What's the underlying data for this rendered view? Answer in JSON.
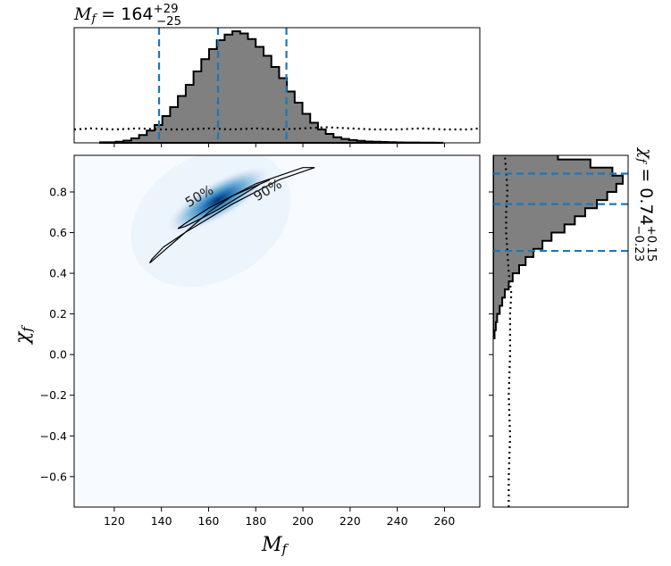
{
  "colors": {
    "hist_fill": "#808080",
    "hist_edge": "#000000",
    "quantile_line": "#1f77b4",
    "density_low": "#f7fbff",
    "density_high": "#08306b",
    "contour": "#000000"
  },
  "chart_data": {
    "type": "heatmap",
    "title_top": {
      "symbol": "M",
      "sub": "f",
      "text": " = 164",
      "sup": "+29",
      "subscript": "−25"
    },
    "title_right": {
      "symbol": "χ",
      "sub": "f",
      "text": " = 0.74",
      "sup": "+0.15",
      "subscript": "−0.23"
    },
    "xlabel": {
      "symbol": "M",
      "sub": "f"
    },
    "ylabel": {
      "symbol": "χ",
      "sub": "f"
    },
    "xlim": [
      103,
      275
    ],
    "ylim": [
      -0.75,
      0.98
    ],
    "x_ticks": [
      120,
      140,
      160,
      180,
      200,
      220,
      240,
      260
    ],
    "y_ticks": [
      -0.6,
      -0.4,
      -0.2,
      0.0,
      0.2,
      0.4,
      0.6,
      0.8
    ],
    "y_tick_labels": [
      "−0.6",
      "−0.4",
      "−0.2",
      "0.0",
      "0.2",
      "0.4",
      "0.6",
      "0.8"
    ],
    "mf_quantiles": [
      139,
      164,
      193
    ],
    "chi_quantiles": [
      0.51,
      0.74,
      0.89
    ],
    "mf_hist": {
      "bin_start": 114,
      "bin_width": 3.3,
      "density": [
        0.005,
        0.005,
        0.01,
        0.02,
        0.04,
        0.07,
        0.11,
        0.16,
        0.24,
        0.32,
        0.42,
        0.52,
        0.64,
        0.75,
        0.84,
        0.92,
        0.97,
        1.0,
        0.98,
        0.93,
        0.86,
        0.78,
        0.68,
        0.58,
        0.46,
        0.36,
        0.26,
        0.18,
        0.12,
        0.08,
        0.05,
        0.035,
        0.025,
        0.018,
        0.012,
        0.01,
        0.008,
        0.006,
        0.004,
        0.003,
        0.003,
        0.002,
        0.002,
        0.001
      ]
    },
    "mf_prior": {
      "x": [
        103,
        110,
        120,
        130,
        140,
        150,
        160,
        170,
        180,
        190,
        200,
        210,
        220,
        230,
        240,
        250,
        260,
        270,
        275
      ],
      "density": [
        0.12,
        0.13,
        0.12,
        0.13,
        0.12,
        0.12,
        0.13,
        0.12,
        0.13,
        0.12,
        0.13,
        0.14,
        0.13,
        0.12,
        0.12,
        0.13,
        0.12,
        0.12,
        0.13
      ]
    },
    "chi_hist": {
      "bin_start": 0.08,
      "bin_width": 0.04,
      "density": [
        0.01,
        0.02,
        0.03,
        0.05,
        0.07,
        0.09,
        0.12,
        0.15,
        0.2,
        0.25,
        0.31,
        0.38,
        0.45,
        0.55,
        0.63,
        0.71,
        0.8,
        0.88,
        0.95,
        1.0,
        0.92,
        0.75,
        0.5,
        0.25
      ]
    },
    "chi_prior": {
      "y": [
        -0.75,
        -0.6,
        -0.4,
        -0.2,
        0.0,
        0.2,
        0.3,
        0.4,
        0.5,
        0.6,
        0.7,
        0.8,
        0.9,
        0.98
      ],
      "density": [
        0.12,
        0.12,
        0.13,
        0.12,
        0.13,
        0.13,
        0.14,
        0.12,
        0.11,
        0.1,
        0.1,
        0.11,
        0.1,
        0.09
      ]
    },
    "density_peak": {
      "mf": 164,
      "chi": 0.76
    },
    "contour_90": [
      [
        135,
        0.45
      ],
      [
        140,
        0.5
      ],
      [
        150,
        0.6
      ],
      [
        160,
        0.7
      ],
      [
        170,
        0.78
      ],
      [
        180,
        0.84
      ],
      [
        190,
        0.88
      ],
      [
        200,
        0.92
      ],
      [
        205,
        0.92
      ],
      [
        200,
        0.9
      ],
      [
        190,
        0.86
      ],
      [
        180,
        0.8
      ],
      [
        170,
        0.74
      ],
      [
        160,
        0.67
      ],
      [
        150,
        0.6
      ],
      [
        141,
        0.53
      ],
      [
        136,
        0.47
      ],
      [
        135,
        0.45
      ]
    ],
    "contour_50": [
      [
        147,
        0.62
      ],
      [
        152,
        0.66
      ],
      [
        160,
        0.72
      ],
      [
        170,
        0.78
      ],
      [
        180,
        0.83
      ],
      [
        186,
        0.86
      ],
      [
        182,
        0.84
      ],
      [
        175,
        0.79
      ],
      [
        165,
        0.72
      ],
      [
        157,
        0.67
      ],
      [
        150,
        0.63
      ],
      [
        147,
        0.62
      ]
    ],
    "contour_labels": [
      {
        "text": "50%",
        "x": 157,
        "y": 0.76
      },
      {
        "text": "90%",
        "x": 186,
        "y": 0.79
      }
    ]
  }
}
